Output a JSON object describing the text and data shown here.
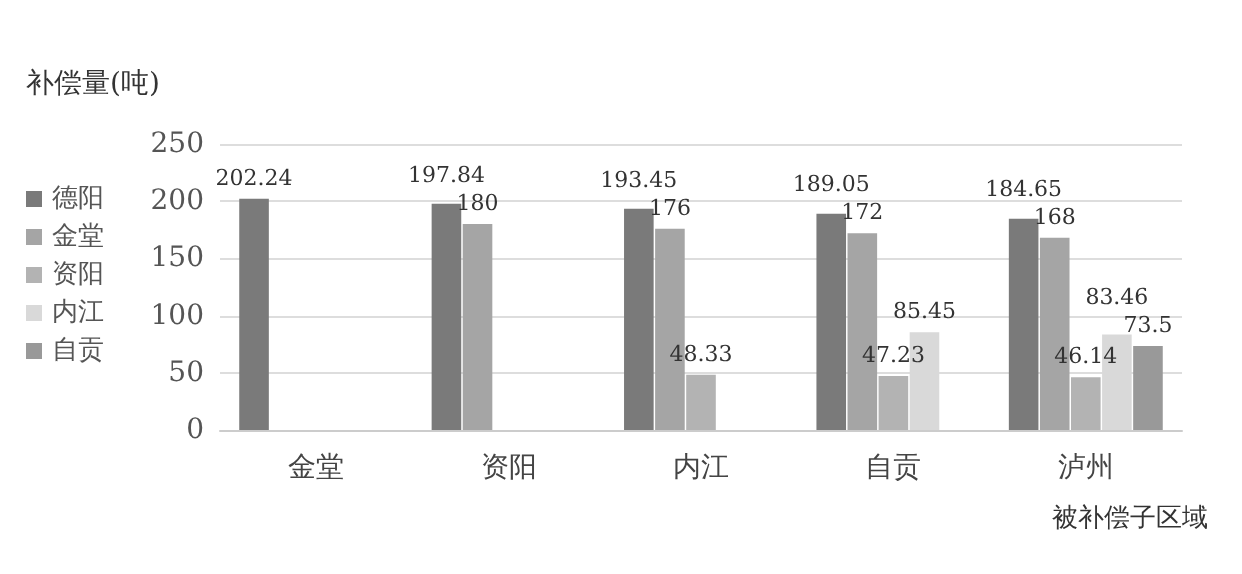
{
  "chart_data": {
    "type": "bar",
    "ylabel": "补偿量(吨)",
    "xlabel": "被补偿子区域",
    "categories": [
      "金堂",
      "资阳",
      "内江",
      "自贡",
      "泸州"
    ],
    "series": [
      {
        "name": "德阳",
        "color": "#7a7a7a",
        "values": [
          202.24,
          197.84,
          193.45,
          189.05,
          184.65
        ]
      },
      {
        "name": "金堂",
        "color": "#a5a5a5",
        "values": [
          null,
          180,
          176,
          172,
          168
        ]
      },
      {
        "name": "资阳",
        "color": "#b3b3b3",
        "values": [
          null,
          null,
          48.33,
          47.23,
          46.14
        ]
      },
      {
        "name": "内江",
        "color": "#d9d9d9",
        "values": [
          null,
          null,
          null,
          85.45,
          83.46
        ]
      },
      {
        "name": "自贡",
        "color": "#999999",
        "values": [
          null,
          null,
          null,
          null,
          73.5
        ]
      }
    ],
    "ylim": [
      0,
      250
    ],
    "yticks": [
      0,
      50,
      100,
      150,
      200,
      250
    ],
    "grid": "y",
    "legend": "left",
    "data_labels": true
  }
}
